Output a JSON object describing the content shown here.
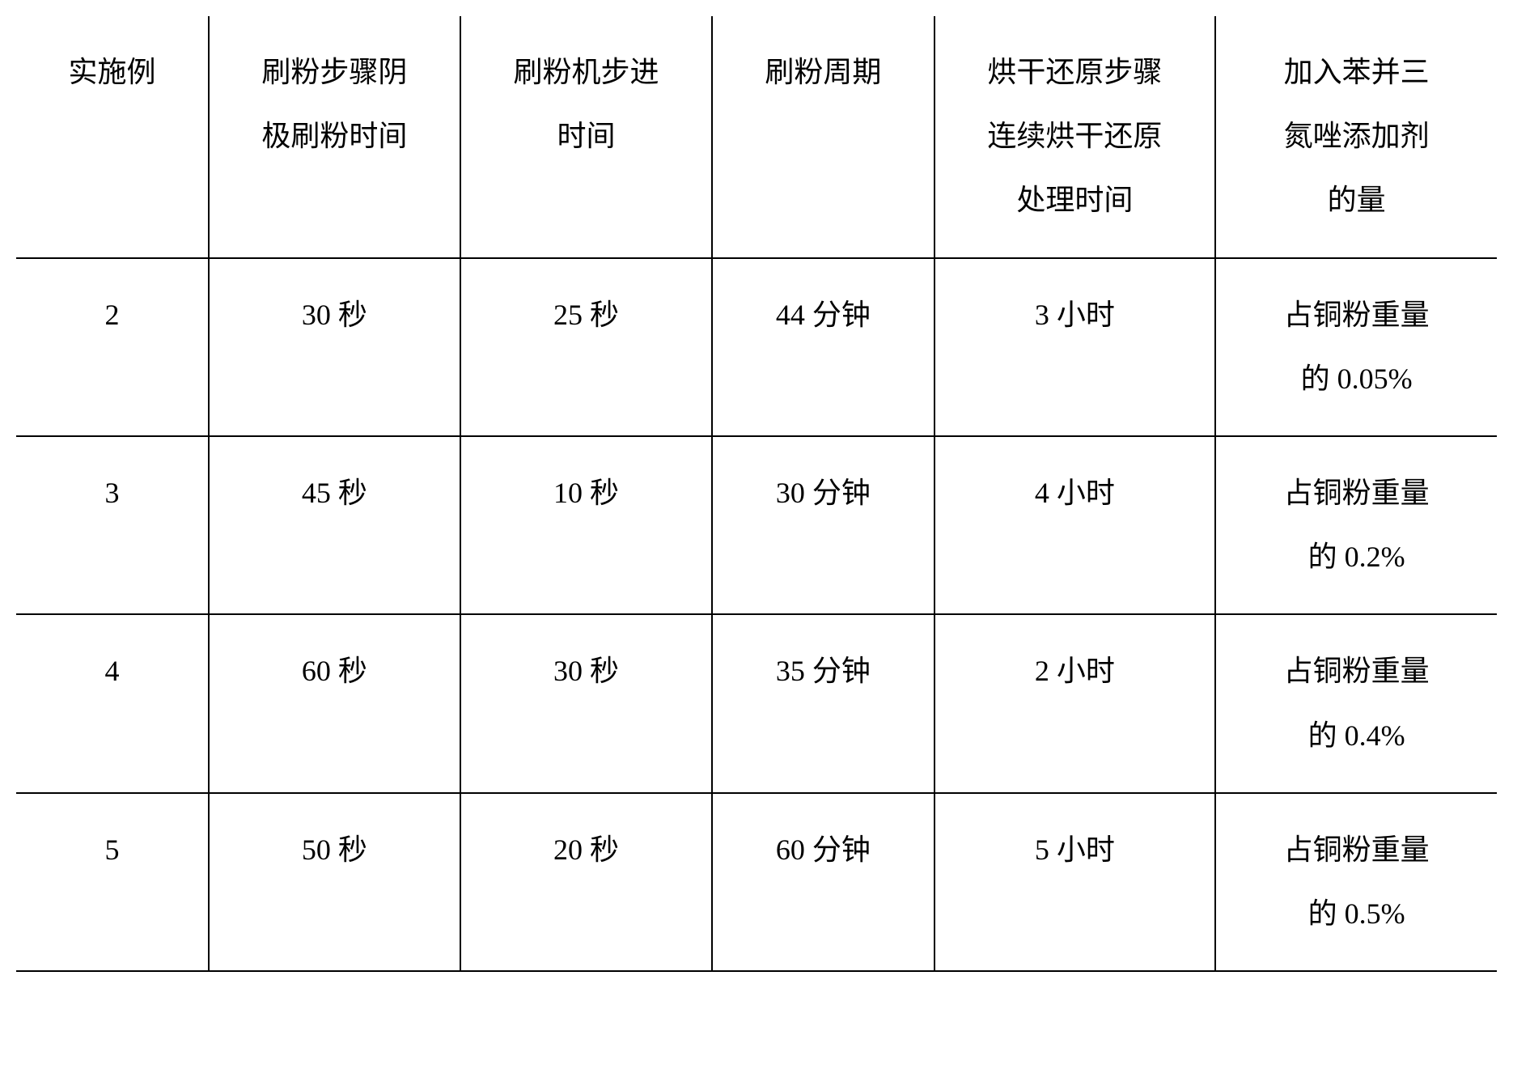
{
  "table": {
    "columns": [
      "实施例",
      "刷粉步骤阴\n极刷粉时间",
      "刷粉机步进\n时间",
      "刷粉周期",
      "烘干还原步骤\n连续烘干还原\n处理时间",
      "加入苯并三\n氮唑添加剂\n的量"
    ],
    "rows": [
      [
        "2",
        "30 秒",
        "25 秒",
        "44 分钟",
        "3 小时",
        "占铜粉重量\n的 0.05%"
      ],
      [
        "3",
        "45 秒",
        "10 秒",
        "30 分钟",
        "4 小时",
        "占铜粉重量\n的 0.2%"
      ],
      [
        "4",
        "60 秒",
        "30 秒",
        "35 分钟",
        "2 小时",
        "占铜粉重量\n的 0.4%"
      ],
      [
        "5",
        "50 秒",
        "20 秒",
        "60 分钟",
        "5 小时",
        "占铜粉重量\n的 0.5%"
      ]
    ],
    "column_widths": [
      "13%",
      "17%",
      "17%",
      "15%",
      "19%",
      "19%"
    ],
    "border_color": "#000000",
    "background_color": "#ffffff",
    "text_color": "#000000",
    "font_size": 36,
    "font_family": "SimSun",
    "line_height": 2.2
  }
}
